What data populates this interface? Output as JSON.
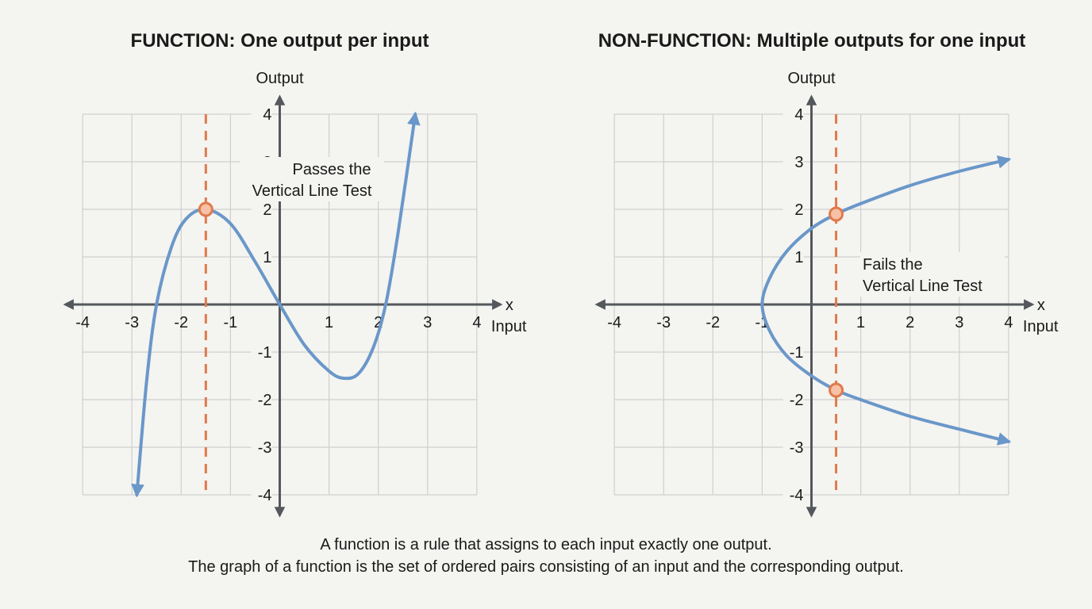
{
  "titles": {
    "left": "FUNCTION: One output per input",
    "right": "NON-FUNCTION: Multiple outputs for one input"
  },
  "caption": {
    "line1": "A function is a rule that assigns to each input exactly one output.",
    "line2": "The graph of a function is the set of ordered pairs consisting of an input and the corresponding output."
  },
  "colors": {
    "curve": "#6a97c9",
    "test_line": "#e07a4c",
    "axis": "#54575c",
    "grid": "#cfcfcf"
  },
  "chart_data": [
    {
      "type": "line",
      "title": "FUNCTION: One output per input",
      "xlabel": "Input",
      "x_axis_name": "x",
      "ylabel": "Output",
      "xlim": [
        -4,
        4
      ],
      "ylim": [
        -4,
        4
      ],
      "grid": true,
      "x_ticks": [
        "-4",
        "-3",
        "-2",
        "-1",
        "1",
        "2",
        "3",
        "4"
      ],
      "y_ticks": [
        "4",
        "3",
        "2",
        "1",
        "-1",
        "-2",
        "-3",
        "-4"
      ],
      "annotation": [
        "Passes the",
        "Vertical Line Test"
      ],
      "vertical_line_x": -1.5,
      "intersection_points": [
        [
          -1.5,
          2
        ]
      ],
      "curve": {
        "x": [
          -2.9,
          -2.7,
          -2.5,
          -2.2,
          -1.9,
          -1.5,
          -1.0,
          -0.5,
          0,
          0.5,
          1.0,
          1.3,
          1.6,
          1.9,
          2.15,
          2.4,
          2.75
        ],
        "y": [
          -4,
          -1.6,
          0,
          1.2,
          1.8,
          2,
          1.7,
          0.9,
          0,
          -0.85,
          -1.4,
          -1.55,
          -1.45,
          -0.9,
          0,
          1.5,
          4
        ]
      }
    },
    {
      "type": "line",
      "title": "NON-FUNCTION: Multiple outputs for one input",
      "xlabel": "Input",
      "x_axis_name": "x",
      "ylabel": "Output",
      "xlim": [
        -4,
        4
      ],
      "ylim": [
        -4,
        4
      ],
      "grid": true,
      "x_ticks": [
        "-4",
        "-3",
        "-2",
        "-1",
        "1",
        "2",
        "3",
        "4"
      ],
      "y_ticks": [
        "4",
        "3",
        "2",
        "1",
        "-1",
        "-2",
        "-3",
        "-4"
      ],
      "annotation": [
        "Fails the",
        "Vertical Line Test"
      ],
      "vertical_line_x": 0.5,
      "intersection_points": [
        [
          0.5,
          1.9
        ],
        [
          0.5,
          -1.8
        ]
      ],
      "curve": {
        "x": [
          4,
          3,
          2,
          1,
          0.5,
          0,
          -0.5,
          -0.85,
          -1,
          -0.85,
          -0.5,
          0,
          0.5,
          1,
          2,
          3,
          4
        ],
        "y": [
          3.05,
          2.8,
          2.5,
          2.12,
          1.9,
          1.6,
          1.12,
          0.55,
          0,
          -0.55,
          -1.08,
          -1.5,
          -1.8,
          -2.0,
          -2.35,
          -2.62,
          -2.88
        ]
      }
    }
  ]
}
